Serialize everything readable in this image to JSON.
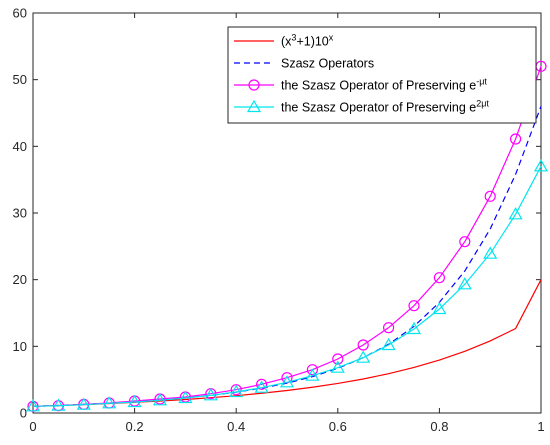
{
  "chart_data": {
    "type": "line",
    "xlim": [
      0,
      1
    ],
    "ylim": [
      0,
      60
    ],
    "xticks": [
      0,
      0.2,
      0.4,
      0.6,
      0.8,
      1
    ],
    "xtick_labels": [
      "0",
      "0.2",
      "0.4",
      "0.6",
      "0.8",
      "1"
    ],
    "yticks": [
      0,
      10,
      20,
      30,
      40,
      50,
      60
    ],
    "ytick_labels": [
      "0",
      "10",
      "20",
      "30",
      "40",
      "50",
      "60"
    ],
    "grid": false,
    "legend_position": "top-right",
    "x": [
      0,
      0.05,
      0.1,
      0.15,
      0.2,
      0.25,
      0.3,
      0.35,
      0.4,
      0.45,
      0.5,
      0.55,
      0.6,
      0.65,
      0.7,
      0.75,
      0.8,
      0.85,
      0.9,
      0.95,
      1
    ],
    "series": [
      {
        "name_parts": [
          {
            "text": "(x",
            "sup": false
          },
          {
            "text": "3",
            "sup": true
          },
          {
            "text": "+1)10",
            "sup": false
          },
          {
            "text": "x",
            "sup": true
          }
        ],
        "color": "#ff0000",
        "line": "solid",
        "marker": "none",
        "values": [
          1,
          1.12,
          1.26,
          1.42,
          1.6,
          1.8,
          2.03,
          2.3,
          2.6,
          2.96,
          3.37,
          3.86,
          4.43,
          5.1,
          5.9,
          6.83,
          7.94,
          9.25,
          10.81,
          12.67,
          20
        ]
      },
      {
        "name_parts": [
          {
            "text": "Szasz Operators",
            "sup": false
          }
        ],
        "color": "#0000ff",
        "line": "dashed",
        "marker": "none",
        "values": [
          1,
          1.13,
          1.3,
          1.48,
          1.68,
          1.95,
          2.27,
          2.65,
          3.13,
          3.73,
          4.48,
          5.45,
          6.7,
          8.3,
          10.3,
          13.0,
          16.6,
          21.3,
          27.6,
          35.8,
          46
        ]
      },
      {
        "name_parts": [
          {
            "text": "the Szasz Operator of Preserving e",
            "sup": false
          },
          {
            "text": "-μt",
            "sup": true
          }
        ],
        "color": "#ff00ff",
        "line": "solid",
        "marker": "circle",
        "values": [
          1,
          1.1,
          1.3,
          1.5,
          1.8,
          2.1,
          2.4,
          2.9,
          3.5,
          4.3,
          5.3,
          6.5,
          8.1,
          10.2,
          12.8,
          16.1,
          20.3,
          25.7,
          32.5,
          41.1,
          52
        ]
      },
      {
        "name_parts": [
          {
            "text": "the Szasz Operator of Preserving e",
            "sup": false
          },
          {
            "text": "2μt",
            "sup": true
          }
        ],
        "color": "#00e5ee",
        "line": "solid",
        "marker": "triangle",
        "values": [
          1,
          1.1,
          1.25,
          1.45,
          1.65,
          1.9,
          2.25,
          2.65,
          3.15,
          3.8,
          4.6,
          5.6,
          6.8,
          8.3,
          10.2,
          12.6,
          15.6,
          19.3,
          23.9,
          29.8,
          37
        ]
      }
    ]
  }
}
